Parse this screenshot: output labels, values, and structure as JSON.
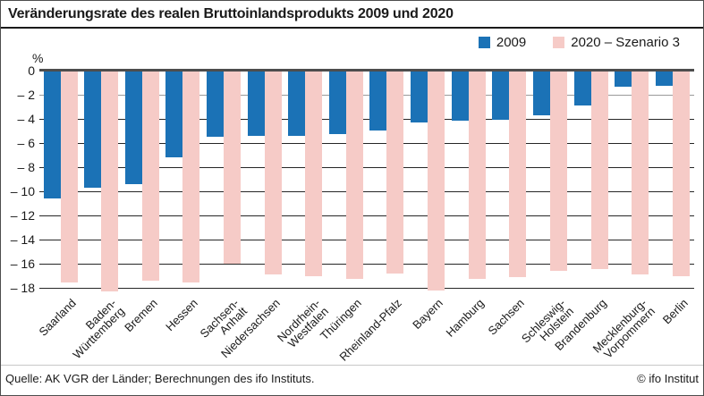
{
  "header": {
    "title": "Veränderungsrate des realen Bruttoinlandsprodukts 2009 und 2020"
  },
  "footer": {
    "source": "Quelle: AK VGR der Länder; Berechnungen des ifo Instituts.",
    "copyright": "© ifo Institut"
  },
  "chart_data": {
    "type": "bar",
    "title": "Veränderungsrate des realen Bruttoinlandsprodukts 2009 und 2020",
    "xlabel": "",
    "ylabel": "%",
    "ylim": [
      -19,
      0
    ],
    "grid": true,
    "legend_position": "top-right",
    "ytick_values": [
      0,
      -2,
      -4,
      -6,
      -8,
      -10,
      -12,
      -14,
      -16,
      -18
    ],
    "ytick_labels": [
      "0",
      "– 2",
      "– 4",
      "– 6",
      "– 8",
      "– 10",
      "– 12",
      "– 14",
      "– 16",
      "– 18"
    ],
    "categories": [
      {
        "name": "Saarland",
        "lines": [
          "Saarland"
        ]
      },
      {
        "name": "Baden-Württemberg",
        "lines": [
          "Baden-",
          "Württemberg"
        ]
      },
      {
        "name": "Bremen",
        "lines": [
          "Bremen"
        ]
      },
      {
        "name": "Hessen",
        "lines": [
          "Hessen"
        ]
      },
      {
        "name": "Sachsen-Anhalt",
        "lines": [
          "Sachsen-",
          "Anhalt"
        ]
      },
      {
        "name": "Niedersachsen",
        "lines": [
          "Niedersachsen"
        ]
      },
      {
        "name": "Nordrhein-Westfalen",
        "lines": [
          "Nordrhein-",
          "Westfalen"
        ]
      },
      {
        "name": "Thüringen",
        "lines": [
          "Thüringen"
        ]
      },
      {
        "name": "Rheinland-Pfalz",
        "lines": [
          "Rheinland-Pfalz"
        ]
      },
      {
        "name": "Bayern",
        "lines": [
          "Bayern"
        ]
      },
      {
        "name": "Hamburg",
        "lines": [
          "Hamburg"
        ]
      },
      {
        "name": "Sachsen",
        "lines": [
          "Sachsen"
        ]
      },
      {
        "name": "Schleswig-Holstein",
        "lines": [
          "Schleswig-",
          "Holstein"
        ]
      },
      {
        "name": "Brandenburg",
        "lines": [
          "Brandenburg"
        ]
      },
      {
        "name": "Mecklenburg-Vorpommern",
        "lines": [
          "Mecklenburg-",
          "Vorpommern"
        ]
      },
      {
        "name": "Berlin",
        "lines": [
          "Berlin"
        ]
      }
    ],
    "series": [
      {
        "name": "2009",
        "color": "#1b72b6",
        "values": [
          -10.6,
          -9.7,
          -9.4,
          -7.2,
          -5.5,
          -5.4,
          -5.4,
          -5.3,
          -5.0,
          -4.3,
          -4.2,
          -4.1,
          -3.7,
          -2.9,
          -1.4,
          -1.3
        ]
      },
      {
        "name": "2020 – Szenario 3",
        "color": "#f6cbc7",
        "values": [
          -17.5,
          -18.3,
          -17.4,
          -17.5,
          -16.0,
          -16.9,
          -17.0,
          -17.2,
          -16.8,
          -18.2,
          -17.2,
          -17.1,
          -16.6,
          -16.4,
          -16.9,
          -17.0
        ]
      }
    ]
  }
}
